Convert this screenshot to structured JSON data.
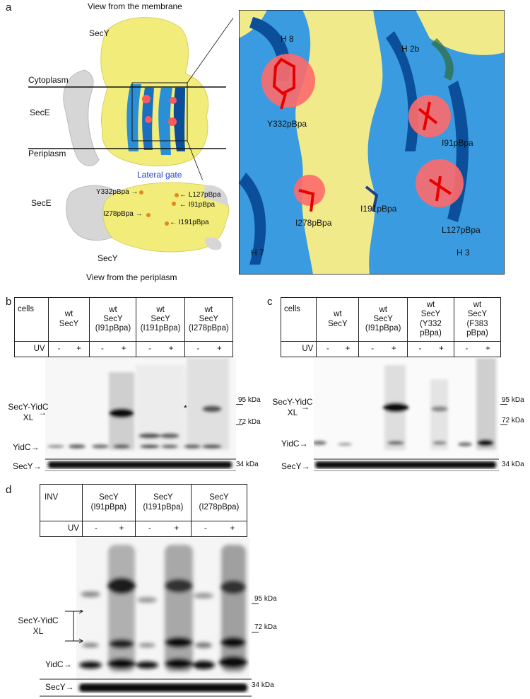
{
  "panel_a": {
    "label": "a",
    "title_top": "View from the membrane",
    "title_bottom": "View from the periplasm",
    "secy_top": "SecY",
    "secy_bottom": "SecY",
    "cytoplasm": "Cytoplasm",
    "periplasm": "Periplasm",
    "sece_top": "SecE",
    "sece_bottom": "SecE",
    "lateral_gate": "Lateral gate",
    "small_labels": [
      "Y332pBpa",
      "L127pBpa",
      "I91pBpa",
      "I278pBpa",
      "I191pBpa"
    ],
    "zoom_labels": {
      "h8": "H 8",
      "h2b": "H 2b",
      "h7": "H 7",
      "h3": "H 3",
      "y332": "Y332pBpa",
      "i91": "I91pBpa",
      "i278": "I278pBpa",
      "i191": "I191pBpa",
      "l127": "L127pBpa"
    }
  },
  "panel_b": {
    "label": "b",
    "cells": "cells",
    "uv": "UV",
    "columns": [
      {
        "l1": "wt",
        "l2": "SecY",
        "l3": ""
      },
      {
        "l1": "wt",
        "l2": "SecY",
        "l3": "(I91pBpa)"
      },
      {
        "l1": "wt",
        "l2": "SecY",
        "l3": "(I191pBpa)"
      },
      {
        "l1": "wt",
        "l2": "SecY",
        "l3": "(I278pBpa)"
      }
    ],
    "uv_marks": [
      "-",
      "+",
      "-",
      "+",
      "-",
      "+",
      "-",
      "+"
    ],
    "xl_label_1": "SecY-YidC",
    "xl_label_2": "XL",
    "yidc": "YidC",
    "secy": "SecY",
    "asterisk": "*",
    "kda": [
      "95 kDa",
      "72 kDa",
      "34 kDa"
    ]
  },
  "panel_c": {
    "label": "c",
    "cells": "cells",
    "uv": "UV",
    "columns": [
      {
        "l1": "wt",
        "l2": "SecY",
        "l3": "",
        "l4": ""
      },
      {
        "l1": "wt",
        "l2": "SecY",
        "l3": "(I91pBpa)",
        "l4": ""
      },
      {
        "l1": "wt",
        "l2": "SecY",
        "l3": "(Y332",
        "l4": "pBpa)"
      },
      {
        "l1": "wt",
        "l2": "SecY",
        "l3": "(F383",
        "l4": "pBpa)"
      }
    ],
    "uv_marks": [
      "-",
      "+",
      "-",
      "+",
      "-",
      "+",
      "-",
      "+"
    ],
    "xl_label_1": "SecY-YidC",
    "xl_label_2": "XL",
    "yidc": "YidC",
    "secy": "SecY",
    "kda": [
      "95 kDa",
      "72 kDa",
      "34 kDa"
    ]
  },
  "panel_d": {
    "label": "d",
    "inv": "INV",
    "uv": "UV",
    "columns": [
      {
        "l1": "SecY",
        "l2": "(I91pBpa)"
      },
      {
        "l1": "SecY",
        "l2": "(I191pBpa)"
      },
      {
        "l1": "SecY",
        "l2": "(I278pBpa)"
      }
    ],
    "uv_marks": [
      "-",
      "+",
      "-",
      "+",
      "-",
      "+"
    ],
    "xl_label_1": "SecY-YidC",
    "xl_label_2": "XL",
    "yidc": "YidC",
    "secy": "SecY",
    "kda": [
      "95 kDa",
      "72 kDa",
      "34 kDa"
    ]
  },
  "colors": {
    "secy_yellow": "#f2ec7a",
    "sece_grey": "#d4d4d4",
    "helix_blue": "#2a8fd6",
    "helix_dark": "#0b4f9a",
    "crosslinker_red": "#ff4040",
    "lateral_gate_text": "#1f3fd0"
  }
}
